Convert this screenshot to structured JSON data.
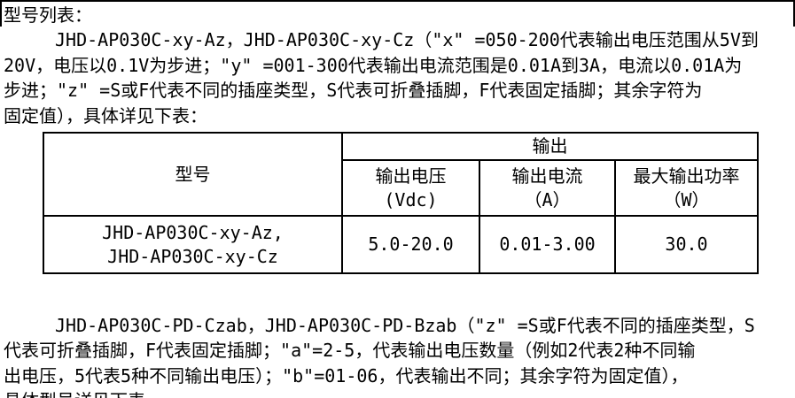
{
  "page": {
    "background": "#ffffff",
    "text_color": "#000000",
    "border_color": "#000000"
  },
  "document": {
    "title": "型号列表：",
    "paragraph1_lines": [
      "JHD-AP030C-xy-Az，JHD-AP030C-xy-Cz（\"x\" =050-200代表输出电压范围从5V到",
      "20V，电压以0.1V为步进；\"y\" =001-300代表输出电流范围是0.01A到3A，电流以0.01A为",
      "步进；\"z\" =S或F代表不同的插座类型，S代表可折叠插脚，F代表固定插脚；其余字符为",
      "固定值），具体详见下表："
    ],
    "paragraph2_lines": [
      "JHD-AP030C-PD-Czab，JHD-AP030C-PD-Bzab（\"z\" =S或F代表不同的插座类型，S",
      "代表可折叠插脚，F代表固定插脚；\"a\"=2-5，代表输出电压数量（例如2代表2种不同输",
      "出电压，5代表5种不同输出电压）；\"b\"=01-06，代表输出不同；其余字符为固定值），",
      "具体型号详见下表"
    ]
  },
  "table": {
    "model_header": "型号",
    "output_group_header": "输出",
    "columns": [
      {
        "title": "输出电压",
        "unit": "(Vdc)"
      },
      {
        "title": "输出电流",
        "unit": "（A）"
      },
      {
        "title": "最大输出功率",
        "unit": "（W）"
      }
    ],
    "rows": [
      {
        "model_line1": "JHD-AP030C-xy-Az,",
        "model_line2": "JHD-AP030C-xy-Cz",
        "voltage": "5.0-20.0",
        "current": "0.01-3.00",
        "power": "30.0"
      }
    ]
  }
}
